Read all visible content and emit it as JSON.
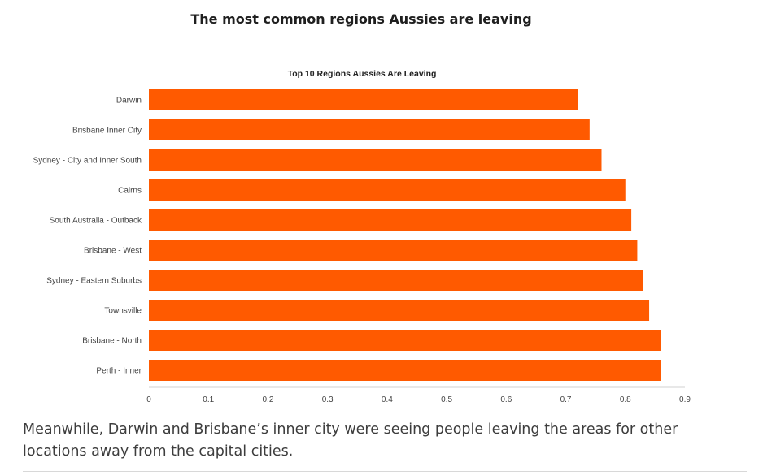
{
  "article": {
    "heading": "The most common regions Aussies are leaving",
    "caption": "Meanwhile, Darwin and Brisbane’s inner city were seeing people leaving the areas for other locations away from the capital cities."
  },
  "chart_data": {
    "type": "bar",
    "orientation": "horizontal",
    "title": "Top 10 Regions Aussies Are Leaving",
    "xlabel": "",
    "ylabel": "",
    "categories": [
      "Darwin",
      "Brisbane Inner City",
      "Sydney - City and Inner South",
      "Cairns",
      "South Australia - Outback",
      "Brisbane - West",
      "Sydney - Eastern Suburbs",
      "Townsville",
      "Brisbane - North",
      "Perth - Inner"
    ],
    "values": [
      0.72,
      0.74,
      0.76,
      0.8,
      0.81,
      0.82,
      0.83,
      0.84,
      0.86,
      0.86
    ],
    "xlim": [
      0,
      0.9
    ],
    "xticks": [
      "0",
      "0.1",
      "0.2",
      "0.3",
      "0.4",
      "0.5",
      "0.6",
      "0.7",
      "0.8",
      "0.9"
    ],
    "bar_color": "#ff5a00",
    "grid": false
  }
}
